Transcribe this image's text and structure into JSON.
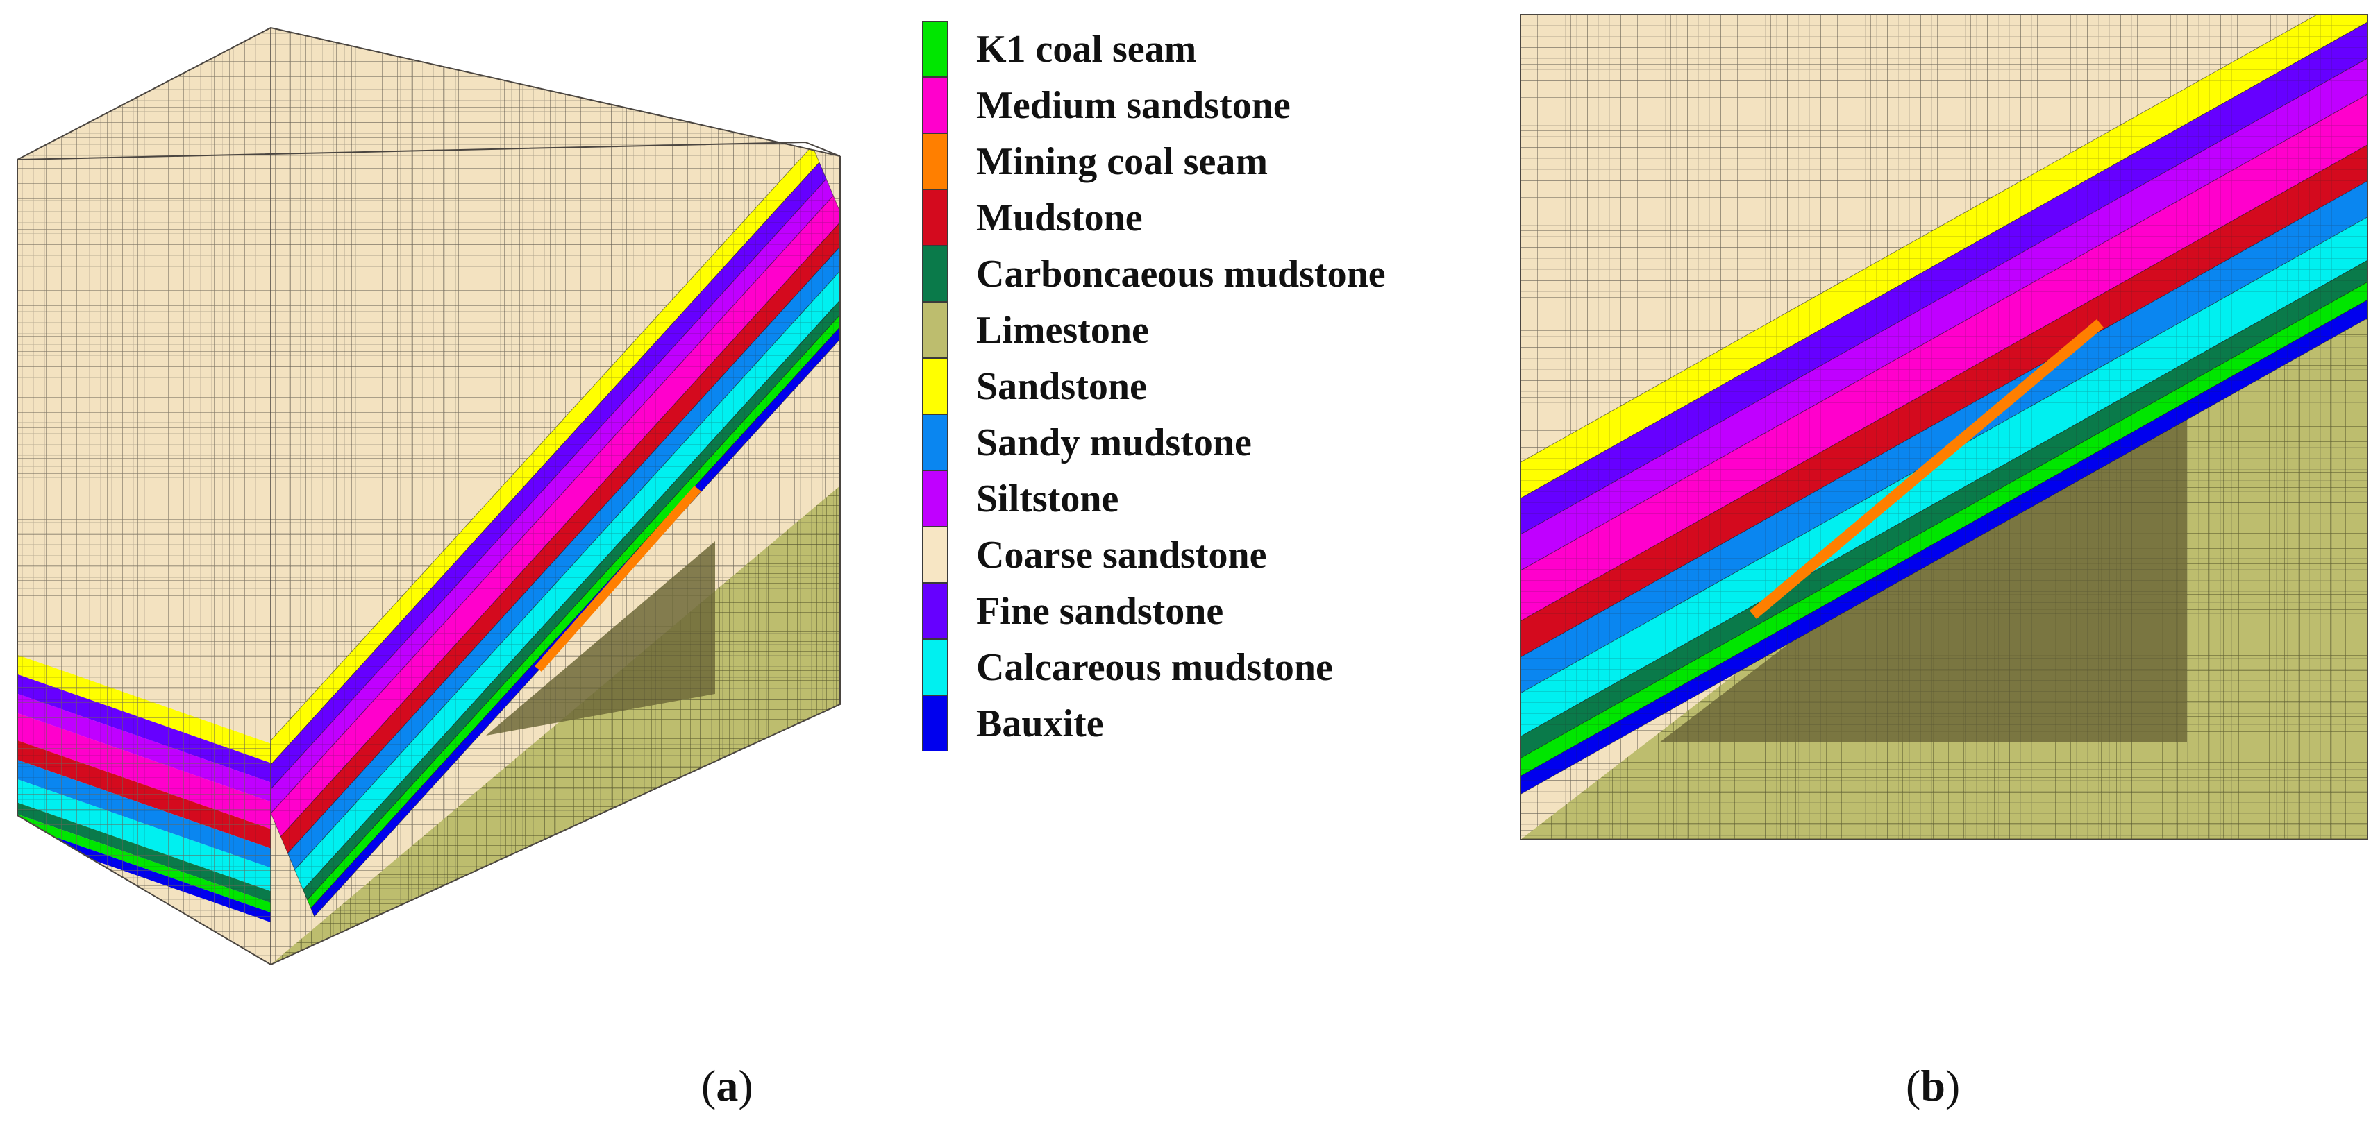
{
  "legend": {
    "items": [
      {
        "label": "K1 coal seam",
        "color": "#00e600"
      },
      {
        "label": "Medium sandstone",
        "color": "#ff00cc"
      },
      {
        "label": "Mining coal seam",
        "color": "#ff7f00"
      },
      {
        "label": "Mudstone",
        "color": "#d40a1e"
      },
      {
        "label": "Carboncaeous mudstone",
        "color": "#0a7a4a"
      },
      {
        "label": "Limestone",
        "color": "#bdbd6e"
      },
      {
        "label": "Sandstone",
        "color": "#ffff00"
      },
      {
        "label": "Sandy mudstone",
        "color": "#0a86f0"
      },
      {
        "label": "Siltstone",
        "color": "#c000ff"
      },
      {
        "label": "Coarse sandstone",
        "color": "#f7e6c4"
      },
      {
        "label": "Fine sandstone",
        "color": "#6600ff"
      },
      {
        "label": "Calcareous mudstone",
        "color": "#00f0f0"
      },
      {
        "label": "Bauxite",
        "color": "#0000ee"
      }
    ]
  },
  "captions": {
    "a": {
      "open": "(",
      "letter": "a",
      "close": ")"
    },
    "b": {
      "open": "(",
      "letter": "b",
      "close": ")"
    }
  }
}
